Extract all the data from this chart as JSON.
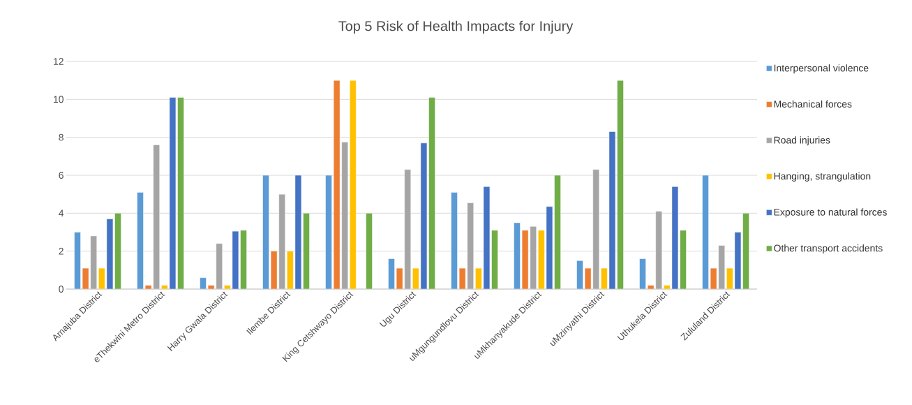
{
  "chart_data": {
    "type": "bar",
    "title": "Top 5 Risk of Health Impacts for Injury",
    "categories": [
      "Amajuba District",
      "eThekwini Metro District",
      "Harry Gwala District",
      "Ilembe District",
      "King Cetshwayo District",
      "Ugu District",
      "uMgungundlovu District",
      "uMkhanyakude District",
      "uMzinyathi District",
      "Uthukela District",
      "Zululand District"
    ],
    "series": [
      {
        "name": "Interpersonal violence",
        "color": "#5b9bd5",
        "values": [
          3,
          5.1,
          0.6,
          6,
          6,
          1.6,
          5.1,
          3.5,
          1.5,
          1.6,
          6
        ]
      },
      {
        "name": "Mechanical forces",
        "color": "#ed7d31",
        "values": [
          1.1,
          0.2,
          0.2,
          2,
          11,
          1.1,
          1.1,
          3.1,
          1.1,
          0.2,
          1.1
        ]
      },
      {
        "name": "Road injuries",
        "color": "#a5a5a5",
        "values": [
          2.8,
          7.6,
          2.4,
          5,
          7.75,
          6.3,
          4.55,
          3.3,
          6.3,
          4.1,
          2.3
        ]
      },
      {
        "name": "Hanging, strangulation",
        "color": "#ffc000",
        "values": [
          1.1,
          0.2,
          0.2,
          2,
          11,
          1.1,
          1.1,
          3.1,
          1.1,
          0.2,
          1.1
        ]
      },
      {
        "name": "Exposure to natural forces",
        "color": "#4472c4",
        "values": [
          3.7,
          10.1,
          3.05,
          6,
          null,
          7.7,
          5.4,
          4.35,
          8.3,
          5.4,
          3
        ]
      },
      {
        "name": "Other transport accidents",
        "color": "#70ad47",
        "values": [
          4,
          10.1,
          3.1,
          4,
          4,
          10.1,
          3.1,
          6,
          11,
          3.1,
          4
        ]
      }
    ],
    "ylim": [
      0,
      12
    ],
    "yticks": [
      0,
      2,
      4,
      6,
      8,
      10,
      12
    ],
    "grid": "y",
    "legend": "right"
  }
}
